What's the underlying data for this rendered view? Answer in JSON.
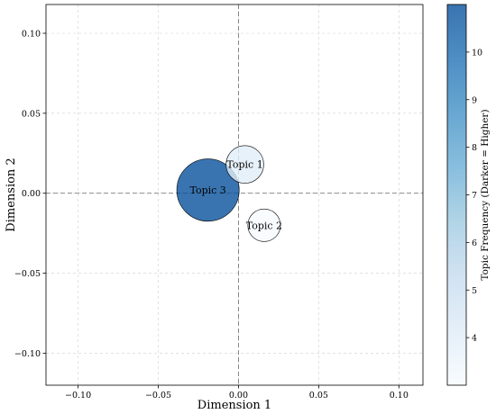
{
  "chart_data": {
    "type": "scatter",
    "xlabel": "Dimension 1",
    "ylabel": "Dimension 2",
    "xlim": [
      -0.12,
      0.115
    ],
    "ylim": [
      -0.12,
      0.118
    ],
    "xticks": [
      -0.1,
      -0.05,
      0.0,
      0.05,
      0.1
    ],
    "xtick_labels": [
      "−0.10",
      "−0.05",
      "0.00",
      "0.05",
      "0.10"
    ],
    "yticks": [
      -0.1,
      -0.05,
      0.0,
      0.05,
      0.1
    ],
    "ytick_labels": [
      "−0.10",
      "−0.05",
      "0.00",
      "0.05",
      "0.10"
    ],
    "grid": true,
    "reference_lines": {
      "x": 0.0,
      "y": 0.0,
      "style": "dashed"
    },
    "points": [
      {
        "label": "Topic 1",
        "x": 0.004,
        "y": 0.018,
        "frequency": 4
      },
      {
        "label": "Topic 2",
        "x": 0.016,
        "y": -0.02,
        "frequency": 3
      },
      {
        "label": "Topic 3",
        "x": -0.019,
        "y": 0.002,
        "frequency": 11
      }
    ],
    "colorbar": {
      "label": "Topic Frequency (Darker = Higher)",
      "range": [
        3,
        11
      ],
      "ticks": [
        4,
        5,
        6,
        7,
        8,
        9,
        10
      ],
      "colormap": "Blues",
      "colors": [
        "#f7fbff",
        "#deebf7",
        "#c6dbef",
        "#9ecae1",
        "#6baed6",
        "#4292c6",
        "#2171b5",
        "#08519c"
      ],
      "alpha": 0.8
    }
  }
}
